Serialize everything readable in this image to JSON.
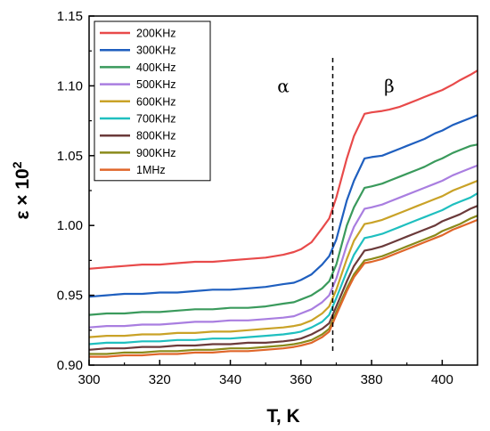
{
  "chart_data": {
    "type": "line",
    "title": "",
    "xlabel": "T, K",
    "ylabel": "ε × 10",
    "ylabel_superscript": "2",
    "xlim": [
      300,
      410
    ],
    "ylim": [
      0.9,
      1.15
    ],
    "xticks": [
      "300",
      "320",
      "340",
      "360",
      "380",
      "400"
    ],
    "yticks": [
      "0.90",
      "0.95",
      "1.00",
      "1.05",
      "1.10",
      "1.15"
    ],
    "grid": false,
    "legend_position": "top-left",
    "transition_T": 369,
    "annotations": [
      {
        "text": "α",
        "x": 355,
        "y": 1.1
      },
      {
        "text": "β",
        "x": 385,
        "y": 1.1
      }
    ],
    "x": [
      300,
      305,
      310,
      315,
      320,
      325,
      330,
      335,
      340,
      345,
      350,
      355,
      358,
      360,
      363,
      366,
      368,
      370,
      373,
      375,
      378,
      380,
      383,
      385,
      388,
      390,
      393,
      395,
      398,
      400,
      403,
      405,
      408,
      410
    ],
    "series": [
      {
        "name": "200KHz",
        "color": "#e84a4a",
        "values": [
          0.969,
          0.97,
          0.971,
          0.972,
          0.972,
          0.973,
          0.974,
          0.974,
          0.975,
          0.976,
          0.977,
          0.979,
          0.981,
          0.983,
          0.988,
          0.998,
          1.005,
          1.02,
          1.048,
          1.064,
          1.08,
          1.081,
          1.082,
          1.083,
          1.085,
          1.087,
          1.09,
          1.092,
          1.095,
          1.097,
          1.101,
          1.104,
          1.108,
          1.111
        ]
      },
      {
        "name": "300KHz",
        "color": "#1f5fbf",
        "values": [
          0.949,
          0.95,
          0.951,
          0.951,
          0.952,
          0.952,
          0.953,
          0.954,
          0.954,
          0.955,
          0.956,
          0.958,
          0.959,
          0.961,
          0.965,
          0.972,
          0.978,
          0.99,
          1.018,
          1.032,
          1.048,
          1.049,
          1.05,
          1.052,
          1.055,
          1.057,
          1.06,
          1.062,
          1.066,
          1.068,
          1.072,
          1.074,
          1.077,
          1.079
        ]
      },
      {
        "name": "400KHz",
        "color": "#3a9a5c",
        "values": [
          0.936,
          0.937,
          0.937,
          0.938,
          0.938,
          0.939,
          0.94,
          0.94,
          0.941,
          0.941,
          0.942,
          0.944,
          0.945,
          0.947,
          0.95,
          0.955,
          0.96,
          0.972,
          1.0,
          1.013,
          1.027,
          1.028,
          1.03,
          1.032,
          1.035,
          1.037,
          1.04,
          1.042,
          1.046,
          1.048,
          1.052,
          1.054,
          1.057,
          1.058
        ]
      },
      {
        "name": "500KHz",
        "color": "#a97ee0",
        "values": [
          0.927,
          0.928,
          0.928,
          0.929,
          0.929,
          0.93,
          0.931,
          0.931,
          0.932,
          0.932,
          0.933,
          0.934,
          0.935,
          0.937,
          0.94,
          0.945,
          0.95,
          0.962,
          0.986,
          0.999,
          1.012,
          1.013,
          1.015,
          1.017,
          1.02,
          1.022,
          1.025,
          1.027,
          1.03,
          1.032,
          1.036,
          1.038,
          1.041,
          1.043
        ]
      },
      {
        "name": "600KHz",
        "color": "#c9a227",
        "values": [
          0.92,
          0.921,
          0.921,
          0.922,
          0.922,
          0.923,
          0.923,
          0.924,
          0.924,
          0.925,
          0.926,
          0.927,
          0.928,
          0.929,
          0.932,
          0.937,
          0.942,
          0.954,
          0.976,
          0.989,
          1.001,
          1.002,
          1.004,
          1.006,
          1.009,
          1.011,
          1.014,
          1.016,
          1.019,
          1.021,
          1.025,
          1.027,
          1.03,
          1.032
        ]
      },
      {
        "name": "700KHz",
        "color": "#1fbfbf",
        "values": [
          0.915,
          0.916,
          0.916,
          0.917,
          0.917,
          0.918,
          0.918,
          0.919,
          0.919,
          0.92,
          0.921,
          0.922,
          0.923,
          0.924,
          0.927,
          0.931,
          0.936,
          0.948,
          0.967,
          0.979,
          0.991,
          0.992,
          0.994,
          0.996,
          0.999,
          1.001,
          1.004,
          1.006,
          1.009,
          1.011,
          1.015,
          1.017,
          1.02,
          1.023
        ]
      },
      {
        "name": "800KHz",
        "color": "#6b3a3a",
        "values": [
          0.911,
          0.912,
          0.912,
          0.913,
          0.913,
          0.914,
          0.914,
          0.915,
          0.915,
          0.916,
          0.916,
          0.917,
          0.918,
          0.919,
          0.922,
          0.926,
          0.93,
          0.942,
          0.96,
          0.971,
          0.982,
          0.983,
          0.985,
          0.987,
          0.99,
          0.992,
          0.995,
          0.997,
          1.0,
          1.003,
          1.006,
          1.008,
          1.012,
          1.014
        ]
      },
      {
        "name": "900KHz",
        "color": "#8a8a1a",
        "values": [
          0.908,
          0.908,
          0.909,
          0.909,
          0.91,
          0.91,
          0.911,
          0.911,
          0.912,
          0.912,
          0.913,
          0.914,
          0.915,
          0.916,
          0.918,
          0.922,
          0.926,
          0.938,
          0.955,
          0.965,
          0.975,
          0.976,
          0.978,
          0.98,
          0.983,
          0.985,
          0.988,
          0.99,
          0.993,
          0.996,
          0.999,
          1.001,
          1.005,
          1.007
        ]
      },
      {
        "name": "1MHz",
        "color": "#e0662a",
        "values": [
          0.906,
          0.906,
          0.907,
          0.907,
          0.908,
          0.908,
          0.909,
          0.909,
          0.91,
          0.91,
          0.911,
          0.912,
          0.913,
          0.914,
          0.916,
          0.92,
          0.924,
          0.936,
          0.953,
          0.963,
          0.973,
          0.974,
          0.976,
          0.978,
          0.981,
          0.983,
          0.986,
          0.988,
          0.991,
          0.993,
          0.997,
          0.999,
          1.002,
          1.004
        ]
      }
    ]
  }
}
